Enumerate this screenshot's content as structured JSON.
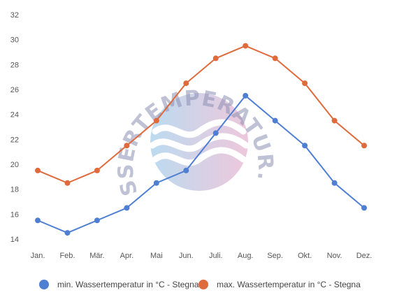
{
  "watermark": {
    "text": "WASSERTEMPERATUR.ORG"
  },
  "chart_data": {
    "type": "line",
    "categories": [
      "Jan.",
      "Feb.",
      "Mär.",
      "Apr.",
      "Mai",
      "Jun.",
      "Juli.",
      "Aug.",
      "Sep.",
      "Okt.",
      "Nov.",
      "Dez."
    ],
    "series": [
      {
        "name": "min. Wassertemperatur in °C - Stegna",
        "color": "#4f7fd2",
        "values": [
          15.5,
          14.5,
          15.5,
          16.5,
          18.5,
          19.5,
          22.5,
          25.5,
          23.5,
          21.5,
          18.5,
          16.5
        ]
      },
      {
        "name": "max. Wassertemperatur in °C - Stegna",
        "color": "#df6a3b",
        "values": [
          19.5,
          18.5,
          19.5,
          21.5,
          23.5,
          26.5,
          28.5,
          29.5,
          28.5,
          26.5,
          23.5,
          21.5
        ]
      }
    ],
    "yticks": [
      14,
      16,
      18,
      20,
      22,
      24,
      26,
      28,
      30,
      32
    ],
    "ylim": [
      14,
      32
    ],
    "grid": false,
    "legend": "bottom"
  }
}
